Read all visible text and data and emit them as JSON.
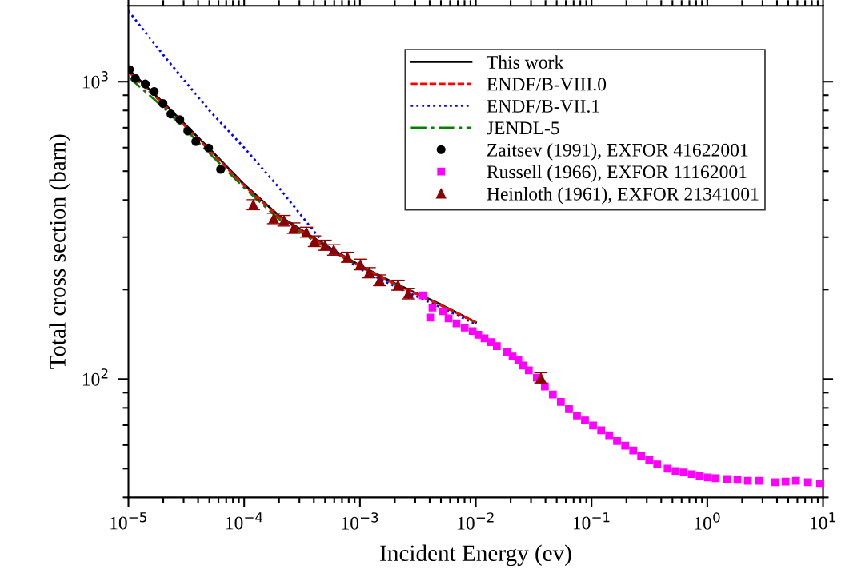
{
  "chart_data": {
    "type": "line",
    "xlabel": "Incident Energy (ev)",
    "ylabel": "Total cross section (barn)",
    "log": "xy",
    "xlim": [
      1e-05,
      10
    ],
    "ylim": [
      40,
      1800
    ],
    "xticks": [
      {
        "value": 1e-05,
        "label": "10$^{−5}$"
      },
      {
        "value": 0.0001,
        "label": "10$^{−4}$"
      },
      {
        "value": 0.001,
        "label": "10$^{−3}$"
      },
      {
        "value": 0.01,
        "label": "10$^{−2}$"
      },
      {
        "value": 0.1,
        "label": "10$^{−1}$"
      },
      {
        "value": 1,
        "label": "10$^{0}$"
      },
      {
        "value": 10,
        "label": "10$^{1}$"
      }
    ],
    "yticks": [
      {
        "value": 100,
        "label": "10$^{2}$"
      },
      {
        "value": 1000,
        "label": "10$^{3}$"
      }
    ],
    "grid": false,
    "legend": "top right",
    "series": [
      {
        "name": "This work",
        "color": "#000000",
        "line_style": "solid",
        "marker": "none",
        "x": [
          1e-05,
          2e-05,
          5e-05,
          0.0001,
          0.0002,
          0.0005,
          0.001,
          0.002,
          0.005,
          0.01
        ],
        "values": [
          1100,
          850,
          595,
          451,
          354,
          282,
          241,
          210,
          178,
          155
        ]
      },
      {
        "name": "ENDF/B-VIII.0",
        "color": "#ff0000",
        "line_style": "dashed",
        "marker": "none",
        "x": [
          1e-05,
          2e-05,
          5e-05,
          0.0001,
          0.0002,
          0.0005,
          0.001,
          0.002,
          0.005,
          0.01
        ],
        "values": [
          1080,
          840,
          588,
          447,
          351,
          280,
          240,
          209,
          177,
          155
        ]
      },
      {
        "name": "ENDF/B-VII.1",
        "color": "#0000ff",
        "line_style": "dotted",
        "marker": "none",
        "x": [
          1e-05,
          2e-05,
          5e-05,
          0.0001,
          0.0002,
          0.0005,
          0.001,
          0.002,
          0.005,
          0.01
        ],
        "values": [
          1729,
          1230,
          800,
          600,
          440,
          282,
          235,
          205,
          174,
          153
        ]
      },
      {
        "name": "JENDL-5",
        "color": "#008000",
        "line_style": "dashdot",
        "marker": "none",
        "x": [
          1e-05,
          2e-05,
          5e-05,
          0.0001,
          0.0002,
          0.0005,
          0.001,
          0.002,
          0.005,
          0.01
        ],
        "values": [
          1038,
          820,
          575,
          440,
          345,
          278,
          239,
          209,
          177,
          155
        ]
      },
      {
        "name": "Zaitsev (1991), EXFOR 41622001",
        "type": "scatter",
        "color": "#000000",
        "marker": "circle",
        "x": [
          1.02e-05,
          1.15e-05,
          1.4e-05,
          1.67e-05,
          1.99e-05,
          2.33e-05,
          2.78e-05,
          3.26e-05,
          3.82e-05,
          4.93e-05,
          6.26e-05
        ],
        "values": [
          1099,
          1025,
          982,
          927,
          844,
          778,
          745,
          682,
          629,
          598,
          507
        ]
      },
      {
        "name": "Russell (1966), EXFOR 11162001",
        "type": "scatter",
        "color": "#ff00ff",
        "marker": "square",
        "x": [
          0.00349,
          0.00404,
          0.00423,
          0.00521,
          0.00582,
          0.00682,
          0.00802,
          0.0094,
          0.0105,
          0.0119,
          0.0136,
          0.0152,
          0.0187,
          0.0208,
          0.0233,
          0.0257,
          0.0287,
          0.0337,
          0.0395,
          0.0463,
          0.0543,
          0.0638,
          0.0748,
          0.0877,
          0.103,
          0.121,
          0.142,
          0.166,
          0.195,
          0.229,
          0.268,
          0.315,
          0.369,
          0.454,
          0.532,
          0.625,
          0.733,
          0.859,
          1.01,
          1.18,
          1.48,
          1.82,
          2.24,
          2.8,
          3.85,
          4.74,
          5.83,
          7.41,
          9.42
        ],
        "values": [
          191,
          161,
          174,
          169,
          160,
          154,
          149,
          145,
          141,
          137,
          133,
          129,
          123,
          119,
          116,
          111,
          107,
          101,
          94.4,
          88.7,
          83.8,
          79.2,
          75.4,
          72.6,
          69.8,
          67.3,
          64.7,
          61.9,
          59.7,
          57.5,
          55.3,
          53.3,
          51.6,
          50.0,
          49.1,
          48.5,
          47.9,
          47.3,
          46.7,
          46.4,
          46.1,
          45.8,
          45.5,
          45.5,
          45.0,
          45.2,
          45.5,
          45.0,
          44.4
        ]
      },
      {
        "name": "Heinloth (1961), EXFOR 21341001",
        "type": "scatter",
        "color": "#8b0000",
        "marker": "triangle",
        "x": [
          0.00012,
          0.00018,
          0.000221,
          0.000268,
          0.000345,
          0.000405,
          0.000499,
          0.000594,
          0.00078,
          0.00101,
          0.0012,
          0.00148,
          0.00213,
          0.00262,
          0.0365
        ],
        "values": [
          386,
          347,
          341,
          322,
          312,
          291,
          282,
          272,
          257,
          243,
          228,
          215,
          207,
          194,
          101
        ],
        "errors": [
          15,
          14,
          14,
          13,
          12,
          12,
          11,
          11,
          10,
          10,
          9,
          9,
          8,
          8,
          4
        ]
      }
    ]
  }
}
